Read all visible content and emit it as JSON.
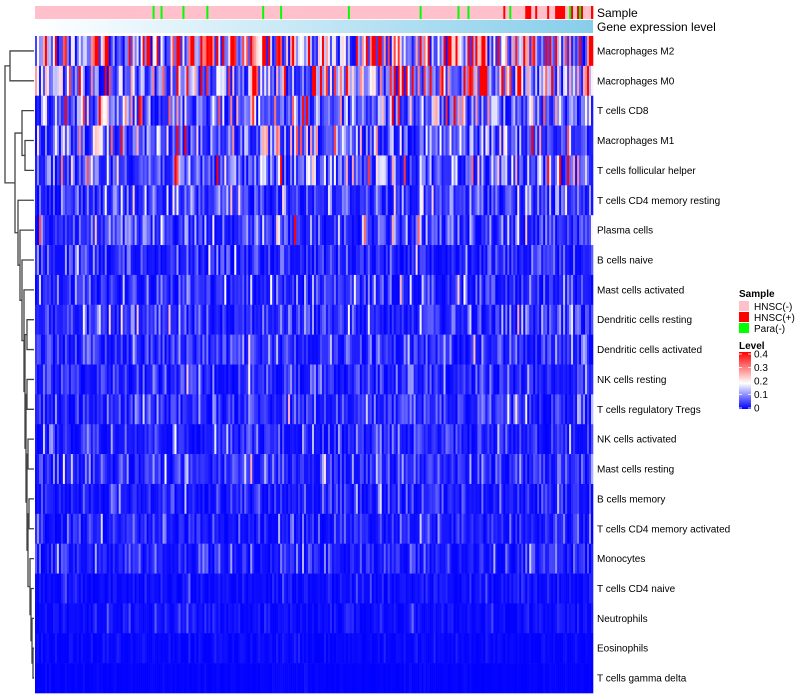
{
  "chart_data": {
    "type": "heatmap",
    "title": "",
    "n_columns": 280,
    "annotations": {
      "sample_label": "Sample",
      "expression_label": "Gene expression level"
    },
    "rows": [
      "Macrophages M2",
      "Macrophages M0",
      "T cells CD8",
      "Macrophages M1",
      "T cells follicular helper",
      "T cells CD4 memory resting",
      "Plasma cells",
      "B cells naive",
      "Mast cells activated",
      "Dendritic cells resting",
      "Dendritic cells activated",
      "NK cells resting",
      "T cells regulatory  Tregs",
      "NK cells activated",
      "Mast cells resting",
      "B cells memory",
      "T cells CD4 memory activated",
      "Monocytes",
      "T cells CD4 naive",
      "Neutrophils",
      "Eosinophils",
      "T cells gamma delta"
    ],
    "row_mean_level": [
      0.25,
      0.18,
      0.12,
      0.09,
      0.09,
      0.06,
      0.06,
      0.04,
      0.05,
      0.045,
      0.045,
      0.04,
      0.04,
      0.035,
      0.04,
      0.03,
      0.03,
      0.03,
      0.012,
      0.015,
      0.006,
      0.003
    ],
    "legend_sample": {
      "title": "Sample",
      "entries": [
        {
          "label": "HNSC(-)",
          "color": "#FFC0CB"
        },
        {
          "label": "HNSC(+)",
          "color": "#FF0000"
        },
        {
          "label": "Para(-)",
          "color": "#00FF00"
        }
      ]
    },
    "legend_level": {
      "title": "Level",
      "ticks": [
        "0.4",
        "0.3",
        "0.2",
        "0.1",
        "0"
      ],
      "range": [
        0,
        0.4
      ],
      "colors": {
        "low": "#0000FF",
        "mid": "#FFFFFF",
        "high": "#FF0000"
      }
    },
    "expression_colors": {
      "low": "#FFFFFF",
      "high": "#87CEEB"
    }
  }
}
